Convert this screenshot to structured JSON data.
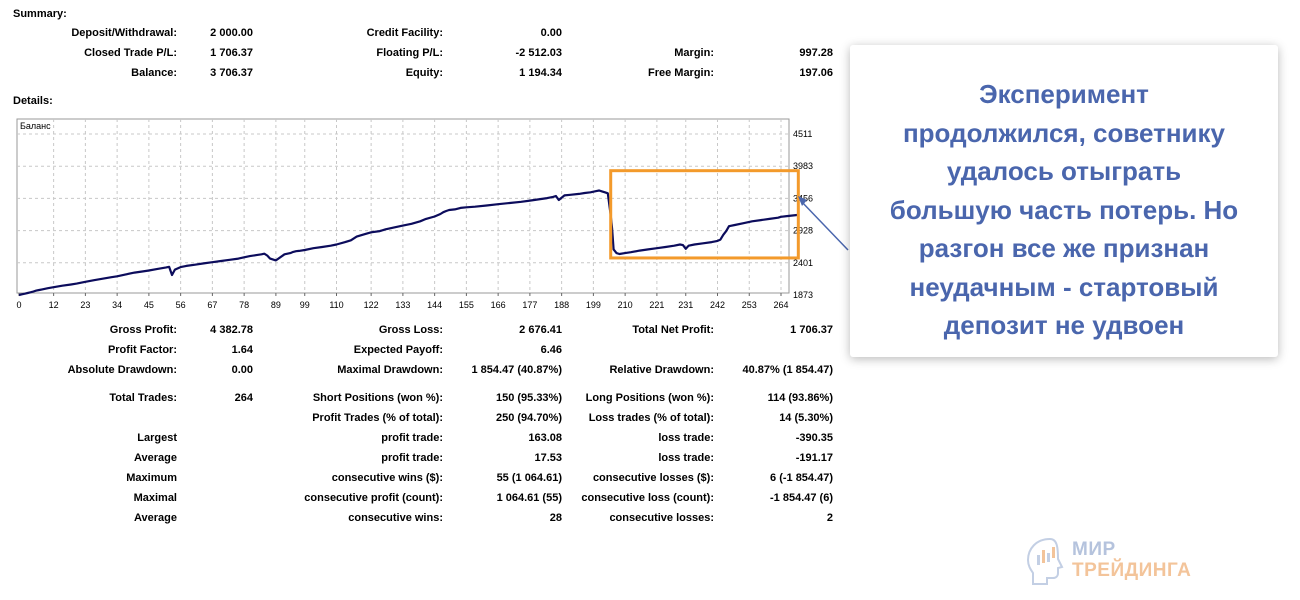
{
  "summary": {
    "title": "Summary:",
    "deposit_label": "Deposit/Withdrawal:",
    "deposit_value": "2 000.00",
    "credit_label": "Credit Facility:",
    "credit_value": "0.00",
    "closed_label": "Closed Trade P/L:",
    "closed_value": "1 706.37",
    "floating_label": "Floating P/L:",
    "floating_value": "-2 512.03",
    "margin_label": "Margin:",
    "margin_value": "997.28",
    "balance_label": "Balance:",
    "balance_value": "3 706.37",
    "equity_label": "Equity:",
    "equity_value": "1 194.34",
    "free_margin_label": "Free Margin:",
    "free_margin_value": "197.06"
  },
  "details": {
    "title": "Details:"
  },
  "chart_data": {
    "type": "line",
    "title": "Баланс",
    "x_ticks": [
      "0",
      "12",
      "23",
      "34",
      "45",
      "56",
      "67",
      "78",
      "89",
      "99",
      "110",
      "122",
      "133",
      "144",
      "155",
      "166",
      "177",
      "188",
      "199",
      "210",
      "221",
      "231",
      "242",
      "253",
      "264"
    ],
    "y_ticks": [
      "4511",
      "3983",
      "3456",
      "2928",
      "2401",
      "1873"
    ],
    "ylim": [
      1873,
      4511
    ],
    "xlim": [
      0,
      270
    ],
    "grid": true,
    "line_color": "#0c0c5c",
    "highlight_color": "#f39a2b",
    "highlight_x_range": [
      205,
      270
    ],
    "highlight_y_range": [
      2480,
      3910
    ],
    "series": [
      {
        "x": [
          0,
          1,
          2,
          3,
          4,
          5,
          6,
          7,
          8,
          9,
          10,
          12,
          15,
          18,
          20,
          23,
          26,
          29,
          32,
          34,
          37,
          40,
          43,
          45,
          48,
          51,
          52,
          53,
          54,
          56,
          58,
          61,
          64,
          67,
          70,
          73,
          76,
          78,
          80,
          82,
          84,
          85,
          86,
          87,
          89,
          92,
          94,
          95,
          96,
          97,
          99,
          102,
          105,
          108,
          110,
          113,
          115,
          116,
          117,
          119,
          122,
          125,
          127,
          130,
          133,
          136,
          139,
          141,
          144,
          146,
          147,
          148,
          149,
          151,
          153,
          155,
          158,
          162,
          166,
          170,
          174,
          177,
          180,
          183,
          185,
          186,
          187,
          189,
          191,
          194,
          196,
          198,
          199,
          200,
          201,
          202,
          203,
          204,
          205,
          205.5,
          206,
          207,
          208,
          210,
          212,
          215,
          218,
          221,
          224,
          227,
          229,
          230,
          231,
          232,
          234,
          237,
          240,
          242,
          243,
          244,
          245,
          246,
          248,
          251,
          254,
          257,
          260,
          263,
          264,
          266,
          268,
          270
        ],
        "y": [
          1873,
          1885,
          1895,
          1905,
          1918,
          1930,
          1945,
          1955,
          1965,
          1975,
          1985,
          2000,
          2025,
          2045,
          2060,
          2090,
          2115,
          2140,
          2165,
          2180,
          2210,
          2240,
          2260,
          2275,
          2300,
          2325,
          2335,
          2200,
          2290,
          2330,
          2350,
          2370,
          2390,
          2410,
          2430,
          2450,
          2470,
          2490,
          2510,
          2525,
          2540,
          2550,
          2520,
          2470,
          2440,
          2540,
          2560,
          2580,
          2590,
          2595,
          2610,
          2640,
          2660,
          2680,
          2700,
          2740,
          2770,
          2800,
          2830,
          2860,
          2900,
          2920,
          2950,
          2980,
          3010,
          3040,
          3080,
          3120,
          3160,
          3200,
          3230,
          3250,
          3265,
          3275,
          3300,
          3310,
          3320,
          3340,
          3360,
          3380,
          3400,
          3420,
          3440,
          3460,
          3480,
          3495,
          3430,
          3505,
          3515,
          3530,
          3545,
          3555,
          3565,
          3575,
          3585,
          3570,
          3555,
          3540,
          3180,
          2960,
          2620,
          2560,
          2545,
          2560,
          2575,
          2600,
          2620,
          2640,
          2660,
          2680,
          2700,
          2690,
          2630,
          2680,
          2700,
          2720,
          2740,
          2760,
          2780,
          2860,
          2920,
          3000,
          3020,
          3050,
          3080,
          3100,
          3120,
          3140,
          3155,
          3165,
          3175,
          3185
        ]
      }
    ]
  },
  "stats": {
    "gross_profit_label": "Gross Profit:",
    "gross_profit_value": "4 382.78",
    "gross_loss_label": "Gross Loss:",
    "gross_loss_value": "2 676.41",
    "total_net_label": "Total Net Profit:",
    "total_net_value": "1 706.37",
    "profit_factor_label": "Profit Factor:",
    "profit_factor_value": "1.64",
    "expected_payoff_label": "Expected Payoff:",
    "expected_payoff_value": "6.46",
    "abs_dd_label": "Absolute Drawdown:",
    "abs_dd_value": "0.00",
    "max_dd_label": "Maximal Drawdown:",
    "max_dd_value": "1 854.47 (40.87%)",
    "rel_dd_label": "Relative Drawdown:",
    "rel_dd_value": "40.87% (1 854.47)",
    "total_trades_label": "Total Trades:",
    "total_trades_value": "264",
    "short_label": "Short Positions (won %):",
    "short_value": "150 (95.33%)",
    "long_label": "Long Positions (won %):",
    "long_value": "114 (93.86%)",
    "profit_trades_label": "Profit Trades (% of total):",
    "profit_trades_value": "250 (94.70%)",
    "loss_trades_label": "Loss trades (% of total):",
    "loss_trades_value": "14 (5.30%)",
    "largest_label": "Largest",
    "largest_profit_label": "profit trade:",
    "largest_profit_value": "163.08",
    "largest_loss_label": "loss trade:",
    "largest_loss_value": "-390.35",
    "average_label": "Average",
    "avg_profit_label": "profit trade:",
    "avg_profit_value": "17.53",
    "avg_loss_label": "loss trade:",
    "avg_loss_value": "-191.17",
    "maximum_label": "Maximum",
    "max_wins_label": "consecutive wins ($):",
    "max_wins_value": "55 (1 064.61)",
    "max_losses_label": "consecutive losses ($):",
    "max_losses_value": "6 (-1 854.47)",
    "maximal_label": "Maximal",
    "maximal_profit_label": "consecutive profit (count):",
    "maximal_profit_value": "1 064.61 (55)",
    "maximal_loss_label": "consecutive loss (count):",
    "maximal_loss_value": "-1 854.47 (6)",
    "average2_label": "Average",
    "avg_wins_label": "consecutive wins:",
    "avg_wins_value": "28",
    "avg_losses_label": "consecutive losses:",
    "avg_losses_value": "2"
  },
  "callout": {
    "text": "Эксперимент\nпродолжился, советнику\nудалось отыграть\nбольшую часть потерь. Но\nразгон все же признан\nнеудачным - стартовый\nдепозит не удвоен"
  },
  "logo": {
    "line1": "МИР",
    "line2": "ТРЕЙДИНГА"
  }
}
